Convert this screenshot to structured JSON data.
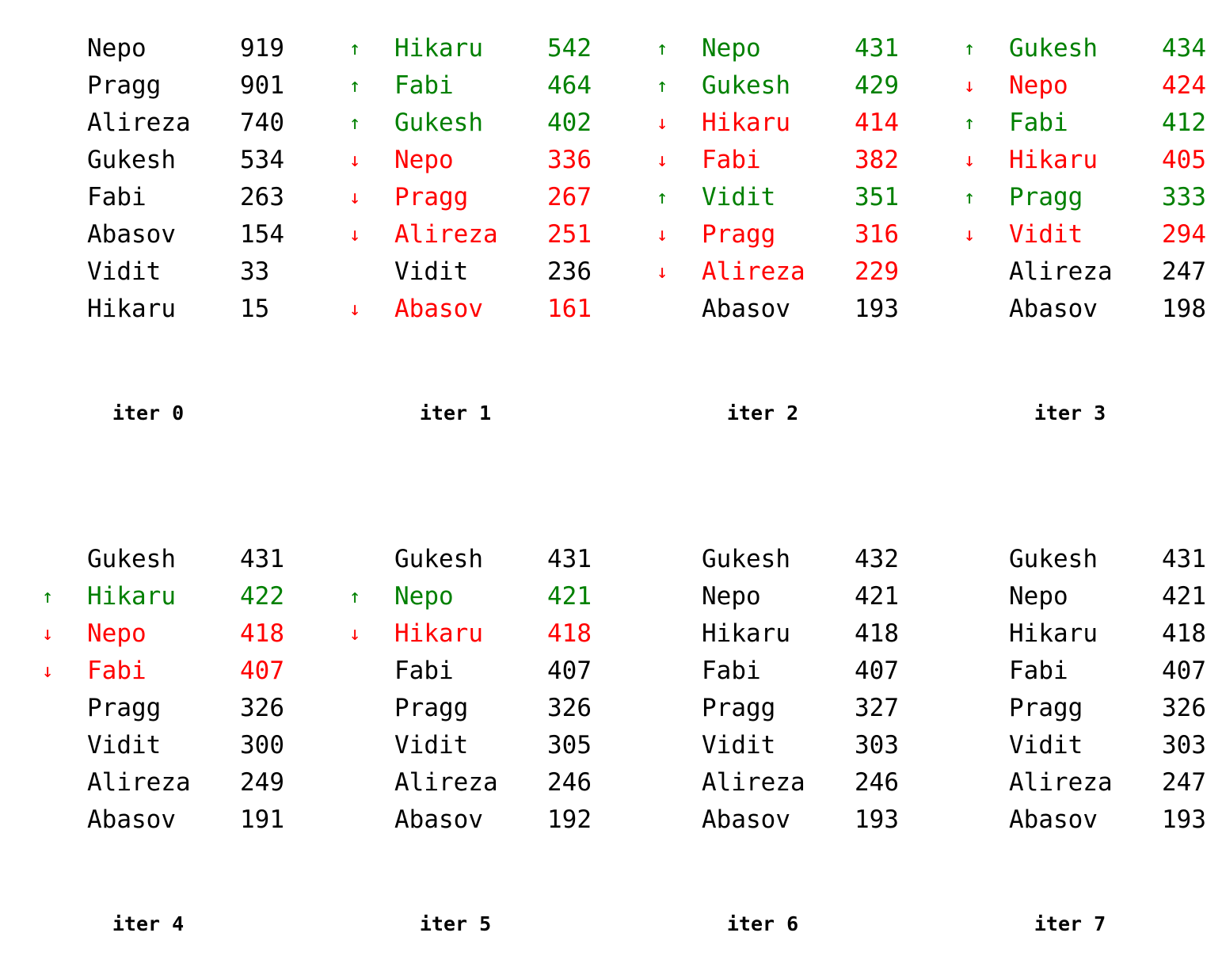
{
  "arrows": {
    "up": "↑",
    "down": "↓",
    "same": ""
  },
  "colors": {
    "up": "#008000",
    "down": "#ff0000",
    "same": "#000000"
  },
  "iterations": [
    {
      "label": "iter 0",
      "rows": [
        {
          "name": "Nepo",
          "score": "919",
          "move": "same"
        },
        {
          "name": "Pragg",
          "score": "901",
          "move": "same"
        },
        {
          "name": "Alireza",
          "score": "740",
          "move": "same"
        },
        {
          "name": "Gukesh",
          "score": "534",
          "move": "same"
        },
        {
          "name": "Fabi",
          "score": "263",
          "move": "same"
        },
        {
          "name": "Abasov",
          "score": "154",
          "move": "same"
        },
        {
          "name": "Vidit",
          "score": "33",
          "move": "same"
        },
        {
          "name": "Hikaru",
          "score": "15",
          "move": "same"
        }
      ]
    },
    {
      "label": "iter 1",
      "rows": [
        {
          "name": "Hikaru",
          "score": "542",
          "move": "up"
        },
        {
          "name": "Fabi",
          "score": "464",
          "move": "up"
        },
        {
          "name": "Gukesh",
          "score": "402",
          "move": "up"
        },
        {
          "name": "Nepo",
          "score": "336",
          "move": "down"
        },
        {
          "name": "Pragg",
          "score": "267",
          "move": "down"
        },
        {
          "name": "Alireza",
          "score": "251",
          "move": "down"
        },
        {
          "name": "Vidit",
          "score": "236",
          "move": "same"
        },
        {
          "name": "Abasov",
          "score": "161",
          "move": "down"
        }
      ]
    },
    {
      "label": "iter 2",
      "rows": [
        {
          "name": "Nepo",
          "score": "431",
          "move": "up"
        },
        {
          "name": "Gukesh",
          "score": "429",
          "move": "up"
        },
        {
          "name": "Hikaru",
          "score": "414",
          "move": "down"
        },
        {
          "name": "Fabi",
          "score": "382",
          "move": "down"
        },
        {
          "name": "Vidit",
          "score": "351",
          "move": "up"
        },
        {
          "name": "Pragg",
          "score": "316",
          "move": "down"
        },
        {
          "name": "Alireza",
          "score": "229",
          "move": "down"
        },
        {
          "name": "Abasov",
          "score": "193",
          "move": "same"
        }
      ]
    },
    {
      "label": "iter 3",
      "rows": [
        {
          "name": "Gukesh",
          "score": "434",
          "move": "up"
        },
        {
          "name": "Nepo",
          "score": "424",
          "move": "down"
        },
        {
          "name": "Fabi",
          "score": "412",
          "move": "up"
        },
        {
          "name": "Hikaru",
          "score": "405",
          "move": "down"
        },
        {
          "name": "Pragg",
          "score": "333",
          "move": "up"
        },
        {
          "name": "Vidit",
          "score": "294",
          "move": "down"
        },
        {
          "name": "Alireza",
          "score": "247",
          "move": "same"
        },
        {
          "name": "Abasov",
          "score": "198",
          "move": "same"
        }
      ]
    },
    {
      "label": "iter 4",
      "rows": [
        {
          "name": "Gukesh",
          "score": "431",
          "move": "same"
        },
        {
          "name": "Hikaru",
          "score": "422",
          "move": "up"
        },
        {
          "name": "Nepo",
          "score": "418",
          "move": "down"
        },
        {
          "name": "Fabi",
          "score": "407",
          "move": "down"
        },
        {
          "name": "Pragg",
          "score": "326",
          "move": "same"
        },
        {
          "name": "Vidit",
          "score": "300",
          "move": "same"
        },
        {
          "name": "Alireza",
          "score": "249",
          "move": "same"
        },
        {
          "name": "Abasov",
          "score": "191",
          "move": "same"
        }
      ]
    },
    {
      "label": "iter 5",
      "rows": [
        {
          "name": "Gukesh",
          "score": "431",
          "move": "same"
        },
        {
          "name": "Nepo",
          "score": "421",
          "move": "up"
        },
        {
          "name": "Hikaru",
          "score": "418",
          "move": "down"
        },
        {
          "name": "Fabi",
          "score": "407",
          "move": "same"
        },
        {
          "name": "Pragg",
          "score": "326",
          "move": "same"
        },
        {
          "name": "Vidit",
          "score": "305",
          "move": "same"
        },
        {
          "name": "Alireza",
          "score": "246",
          "move": "same"
        },
        {
          "name": "Abasov",
          "score": "192",
          "move": "same"
        }
      ]
    },
    {
      "label": "iter 6",
      "rows": [
        {
          "name": "Gukesh",
          "score": "432",
          "move": "same"
        },
        {
          "name": "Nepo",
          "score": "421",
          "move": "same"
        },
        {
          "name": "Hikaru",
          "score": "418",
          "move": "same"
        },
        {
          "name": "Fabi",
          "score": "407",
          "move": "same"
        },
        {
          "name": "Pragg",
          "score": "327",
          "move": "same"
        },
        {
          "name": "Vidit",
          "score": "303",
          "move": "same"
        },
        {
          "name": "Alireza",
          "score": "246",
          "move": "same"
        },
        {
          "name": "Abasov",
          "score": "193",
          "move": "same"
        }
      ]
    },
    {
      "label": "iter 7",
      "rows": [
        {
          "name": "Gukesh",
          "score": "431",
          "move": "same"
        },
        {
          "name": "Nepo",
          "score": "421",
          "move": "same"
        },
        {
          "name": "Hikaru",
          "score": "418",
          "move": "same"
        },
        {
          "name": "Fabi",
          "score": "407",
          "move": "same"
        },
        {
          "name": "Pragg",
          "score": "326",
          "move": "same"
        },
        {
          "name": "Vidit",
          "score": "303",
          "move": "same"
        },
        {
          "name": "Alireza",
          "score": "247",
          "move": "same"
        },
        {
          "name": "Abasov",
          "score": "193",
          "move": "same"
        }
      ]
    }
  ]
}
